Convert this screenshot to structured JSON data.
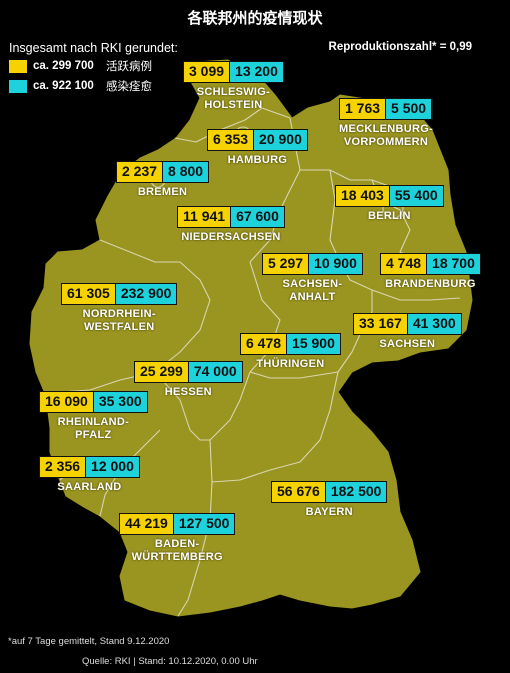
{
  "title": "各联邦州的疫情现状",
  "legend": {
    "title": "Insgesamt nach RKI gerundet:",
    "items": [
      {
        "value": "ca. 299 700",
        "label": "活跃病例",
        "color": "#f6d200"
      },
      {
        "value": "ca. 922 100",
        "label": "感染痊愈",
        "color": "#1ed2dc"
      }
    ]
  },
  "reproduction": "Reproduktionszahl* = 0,99",
  "states": [
    {
      "key": "schleswig-holstein",
      "name": "SCHLESWIG-\nHOLSTEIN",
      "current": "3 099",
      "recovered": "13 200"
    },
    {
      "key": "mecklenburg-vorpommern",
      "name": "MECKLENBURG-\nVORPOMMERN",
      "current": "1 763",
      "recovered": "5 500"
    },
    {
      "key": "hamburg",
      "name": "HAMBURG",
      "current": "6 353",
      "recovered": "20 900"
    },
    {
      "key": "bremen",
      "name": "BREMEN",
      "current": "2 237",
      "recovered": "8 800"
    },
    {
      "key": "berlin",
      "name": "BERLIN",
      "current": "18 403",
      "recovered": "55 400"
    },
    {
      "key": "niedersachsen",
      "name": "NIEDERSACHSEN",
      "current": "11 941",
      "recovered": "67 600"
    },
    {
      "key": "sachsen-anhalt",
      "name": "SACHSEN-\nANHALT",
      "current": "5 297",
      "recovered": "10 900"
    },
    {
      "key": "brandenburg",
      "name": "BRANDENBURG",
      "current": "4 748",
      "recovered": "18 700"
    },
    {
      "key": "nordrhein-westfalen",
      "name": "NORDRHEIN-\nWESTFALEN",
      "current": "61 305",
      "recovered": "232 900"
    },
    {
      "key": "sachsen",
      "name": "SACHSEN",
      "current": "33 167",
      "recovered": "41 300"
    },
    {
      "key": "thueringen",
      "name": "THÜRINGEN",
      "current": "6 478",
      "recovered": "15 900"
    },
    {
      "key": "hessen",
      "name": "HESSEN",
      "current": "25 299",
      "recovered": "74 000"
    },
    {
      "key": "rheinland-pfalz",
      "name": "RHEINLAND-\nPFALZ",
      "current": "16 090",
      "recovered": "35 300"
    },
    {
      "key": "saarland",
      "name": "SAARLAND",
      "current": "2 356",
      "recovered": "12 000"
    },
    {
      "key": "bayern",
      "name": "BAYERN",
      "current": "56 676",
      "recovered": "182 500"
    },
    {
      "key": "baden-wuerttemberg",
      "name": "BADEN-\nWÜRTTEMBERG",
      "current": "44 219",
      "recovered": "127 500"
    }
  ],
  "footnote": "*auf 7 Tage gemittelt, Stand 9.12.2020",
  "source": "Quelle: RKI | Stand: 10.12.2020, 0.00 Uhr",
  "colors": {
    "map_fill": "#9a9420",
    "border": "#d9d6b0",
    "background": "#000000"
  }
}
